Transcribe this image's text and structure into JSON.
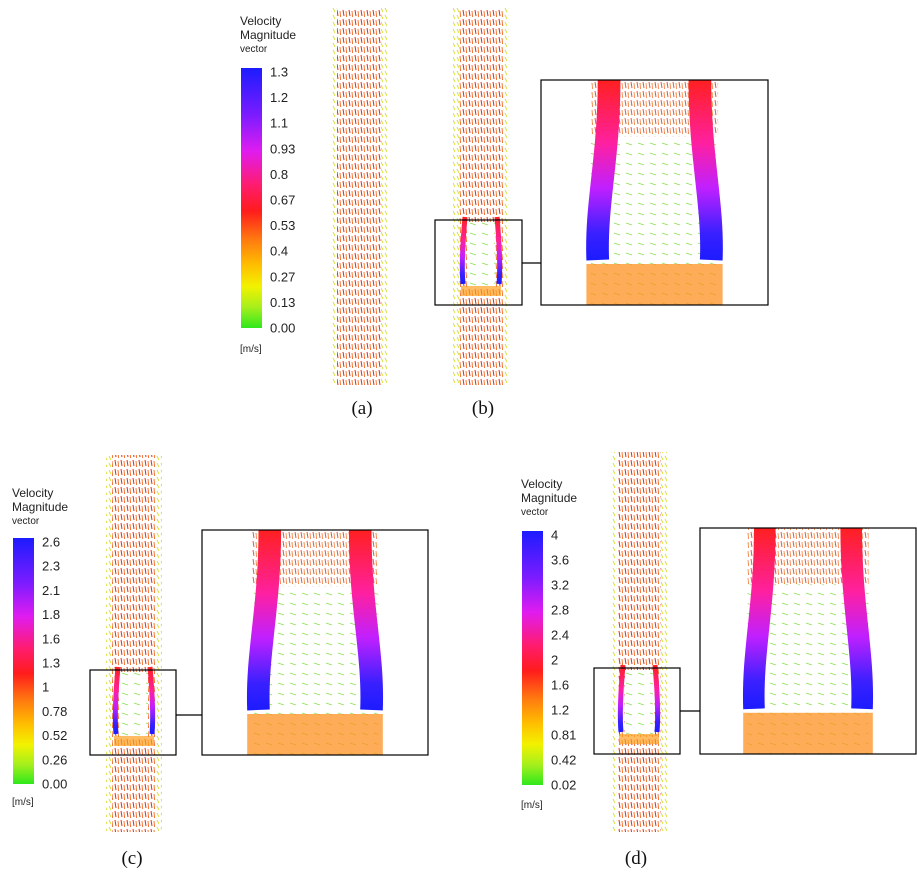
{
  "legends": [
    {
      "title": [
        "Velocity",
        "Magnitude",
        "vector"
      ],
      "ticks": [
        "1.3",
        "1.2",
        "1.1",
        "0.93",
        "0.8",
        "0.67",
        "0.53",
        "0.4",
        "0.27",
        "0.13",
        "0.00"
      ],
      "unit": "[m/s]"
    },
    {
      "title": [
        "Velocity",
        "Magnitude",
        "vector"
      ],
      "ticks": [
        "2.6",
        "2.3",
        "2.1",
        "1.8",
        "1.6",
        "1.3",
        "1",
        "0.78",
        "0.52",
        "0.26",
        "0.00"
      ],
      "unit": "[m/s]"
    },
    {
      "title": [
        "Velocity",
        "Magnitude",
        "vector"
      ],
      "ticks": [
        "4",
        "3.6",
        "3.2",
        "2.8",
        "2.4",
        "2",
        "1.6",
        "1.2",
        "0.81",
        "0.42",
        "0.02"
      ],
      "unit": "[m/s]"
    }
  ],
  "panels": [
    "(a)",
    "(b)",
    "(c)",
    "(d)"
  ]
}
